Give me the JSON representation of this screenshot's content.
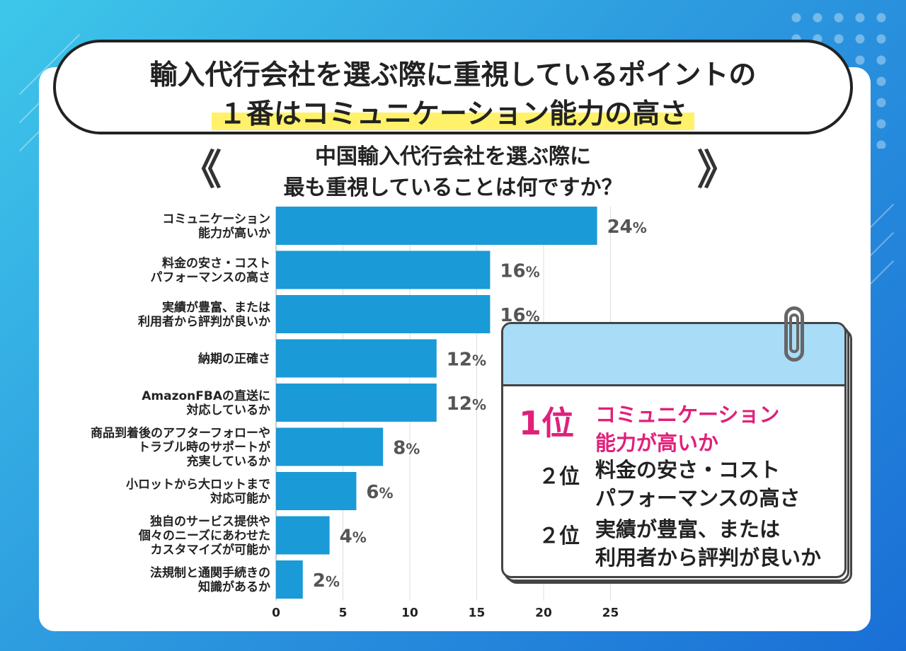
{
  "title": {
    "line1": "輸入代行会社を選ぶ際に重視しているポイントの",
    "line2": "１番はコミュニケーション能力の高さ"
  },
  "question": {
    "line1": "中国輸入代行会社を選ぶ際に",
    "line2": "最も重視していることは何ですか？"
  },
  "decor": {
    "chev_left": "《",
    "chev_right": "》"
  },
  "colors": {
    "bar": "#1a9ad6",
    "accent": "#e0207a",
    "highlight": "#fff26a",
    "calendar_header": "#a8dcf7"
  },
  "chart_data": {
    "type": "bar",
    "orientation": "horizontal",
    "categories": [
      [
        "コミュニケーション",
        "能力が高いか"
      ],
      [
        "料金の安さ・コスト",
        "パフォーマンスの高さ"
      ],
      [
        "実績が豊富、または",
        "利用者から評判が良いか"
      ],
      [
        "納期の正確さ"
      ],
      [
        "AmazonFBAの直送に",
        "対応しているか"
      ],
      [
        "商品到着後のアフターフォローや",
        "トラブル時のサポートが",
        "充実しているか"
      ],
      [
        "小ロットから大ロットまで",
        "対応可能か"
      ],
      [
        "独自のサービス提供や",
        "個々のニーズにあわせた",
        "カスタマイズが可能か"
      ],
      [
        "法規制と通関手続きの",
        "知識があるか"
      ]
    ],
    "values": [
      24,
      16,
      16,
      12,
      12,
      8,
      6,
      4,
      2
    ],
    "value_suffix": "%",
    "xticks": [
      0,
      5,
      10,
      15,
      20,
      25
    ],
    "xlim": [
      0,
      25
    ],
    "grid": true
  },
  "ranking": {
    "first_rank": "1位",
    "first_label": [
      "コミュニケーション",
      "能力が高いか"
    ],
    "items": [
      {
        "rank": "２位",
        "label": [
          "料金の安さ・コスト",
          "パフォーマンスの高さ"
        ]
      },
      {
        "rank": "２位",
        "label": [
          "実績が豊富、または",
          "利用者から評判が良いか"
        ]
      }
    ]
  }
}
